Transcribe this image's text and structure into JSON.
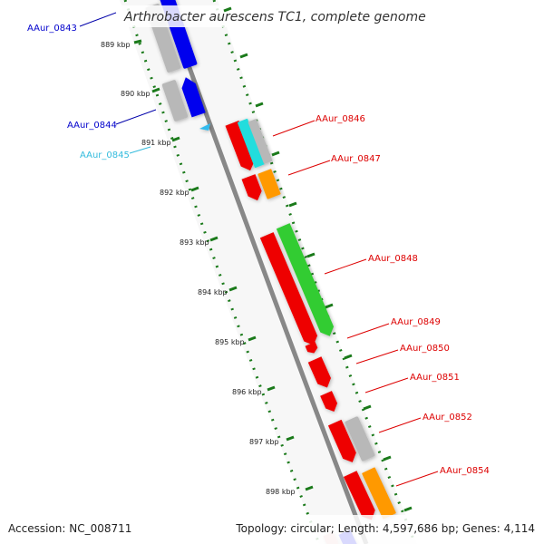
{
  "title": "Arthrobacter aurescens TC1, complete genome",
  "footer": {
    "accession": "Accession: NC_008711",
    "topology": "Topology: circular; Length: 4,597,686 bp; Genes: 4,114"
  },
  "ticks": [
    "889 kbp",
    "890 kbp",
    "891 kbp",
    "892 kbp",
    "893 kbp",
    "894 kbp",
    "895 kbp",
    "896 kbp",
    "897 kbp",
    "898 kbp"
  ],
  "genes": [
    {
      "name": "AAur_0843",
      "color": "#0000cc"
    },
    {
      "name": "AAur_0844",
      "color": "#0000cc"
    },
    {
      "name": "AAur_0845",
      "color": "#33bbdd"
    },
    {
      "name": "AAur_0846",
      "color": "#dd0000"
    },
    {
      "name": "AAur_0847",
      "color": "#dd0000"
    },
    {
      "name": "AAur_0848",
      "color": "#dd0000"
    },
    {
      "name": "AAur_0849",
      "color": "#dd0000"
    },
    {
      "name": "AAur_0850",
      "color": "#dd0000"
    },
    {
      "name": "AAur_0851",
      "color": "#dd0000"
    },
    {
      "name": "AAur_0852",
      "color": "#dd0000"
    },
    {
      "name": "AAur_0854",
      "color": "#dd0000"
    }
  ],
  "colors": {
    "backbone": "#888888",
    "tick": "#1a7a1a",
    "red": "#ee0000",
    "blue": "#0000ee",
    "cyan": "#22dddd",
    "grey": "#b8b8b8",
    "orange": "#ff9900",
    "green": "#33cc33"
  }
}
